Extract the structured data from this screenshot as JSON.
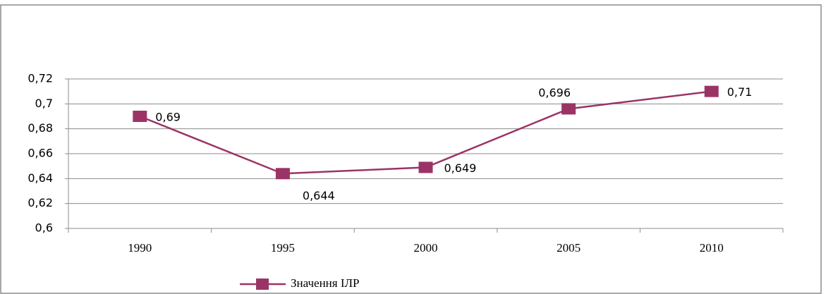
{
  "chart_data": {
    "type": "line",
    "categories": [
      "1990",
      "1995",
      "2000",
      "2005",
      "2010"
    ],
    "series": [
      {
        "name": "Значення ІЛР",
        "color": "#9b3466",
        "values": [
          0.69,
          0.644,
          0.649,
          0.696,
          0.71
        ],
        "value_labels": [
          "0,69",
          "0,644",
          "0,649",
          "0,696",
          "0,71"
        ]
      }
    ],
    "ylim": [
      0.6,
      0.72
    ],
    "yticks": [
      {
        "value": 0.6,
        "label": "0,6"
      },
      {
        "value": 0.62,
        "label": "0,62"
      },
      {
        "value": 0.64,
        "label": "0,64"
      },
      {
        "value": 0.66,
        "label": "0,66"
      },
      {
        "value": 0.68,
        "label": "0,68"
      },
      {
        "value": 0.7,
        "label": "0,7"
      },
      {
        "value": 0.72,
        "label": "0,72"
      }
    ],
    "grid": true,
    "legend": "bottom"
  }
}
